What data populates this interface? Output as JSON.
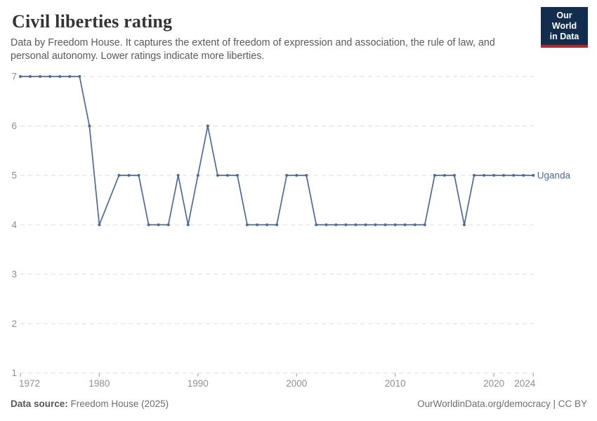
{
  "header": {
    "title": "Civil liberties rating",
    "subtitle": "Data by Freedom House. It captures the extent of freedom of expression and association, the rule of law, and personal autonomy. Lower ratings indicate more liberties.",
    "logo_line1": "Our World",
    "logo_line2": "in Data"
  },
  "chart_data": {
    "type": "line",
    "title": "Civil liberties rating",
    "xlabel": "",
    "ylabel": "",
    "xlim": [
      1972,
      2024
    ],
    "ylim": [
      1,
      7
    ],
    "grid": "horizontal-dashed",
    "legend_position": "end-of-line",
    "xticks": [
      1972,
      1980,
      1990,
      2000,
      2010,
      2020,
      2024
    ],
    "yticks": [
      1,
      2,
      3,
      4,
      5,
      6,
      7
    ],
    "series": [
      {
        "name": "Uganda",
        "color": "#4C6A9C",
        "points": [
          [
            1972,
            7
          ],
          [
            1973,
            7
          ],
          [
            1974,
            7
          ],
          [
            1975,
            7
          ],
          [
            1976,
            7
          ],
          [
            1977,
            7
          ],
          [
            1978,
            7
          ],
          [
            1979,
            6
          ],
          [
            1980,
            4
          ],
          [
            1982,
            5
          ],
          [
            1983,
            5
          ],
          [
            1984,
            5
          ],
          [
            1985,
            4
          ],
          [
            1986,
            4
          ],
          [
            1987,
            4
          ],
          [
            1988,
            5
          ],
          [
            1989,
            4
          ],
          [
            1990,
            5
          ],
          [
            1991,
            6
          ],
          [
            1992,
            5
          ],
          [
            1993,
            5
          ],
          [
            1994,
            5
          ],
          [
            1995,
            4
          ],
          [
            1996,
            4
          ],
          [
            1997,
            4
          ],
          [
            1998,
            4
          ],
          [
            1999,
            5
          ],
          [
            2000,
            5
          ],
          [
            2001,
            5
          ],
          [
            2002,
            4
          ],
          [
            2003,
            4
          ],
          [
            2004,
            4
          ],
          [
            2005,
            4
          ],
          [
            2006,
            4
          ],
          [
            2007,
            4
          ],
          [
            2008,
            4
          ],
          [
            2009,
            4
          ],
          [
            2010,
            4
          ],
          [
            2011,
            4
          ],
          [
            2012,
            4
          ],
          [
            2013,
            4
          ],
          [
            2014,
            5
          ],
          [
            2015,
            5
          ],
          [
            2016,
            5
          ],
          [
            2017,
            4
          ],
          [
            2018,
            5
          ],
          [
            2019,
            5
          ],
          [
            2020,
            5
          ],
          [
            2021,
            5
          ],
          [
            2022,
            5
          ],
          [
            2023,
            5
          ],
          [
            2024,
            5
          ]
        ]
      }
    ]
  },
  "colors": {
    "line": "#4C6A9C",
    "grid": "#dedede",
    "axis_text": "#8f8f8f",
    "tick_mark": "#999999",
    "title_text": "#333333",
    "subtitle_text": "#595959",
    "footer_text": "#6e6e6e",
    "logo_bg": "#122d4e",
    "logo_red": "#b5292c"
  },
  "footer": {
    "datasource_label": "Data source:",
    "datasource_value": "Freedom House (2025)",
    "right": "OurWorldinData.org/democracy | CC BY"
  }
}
